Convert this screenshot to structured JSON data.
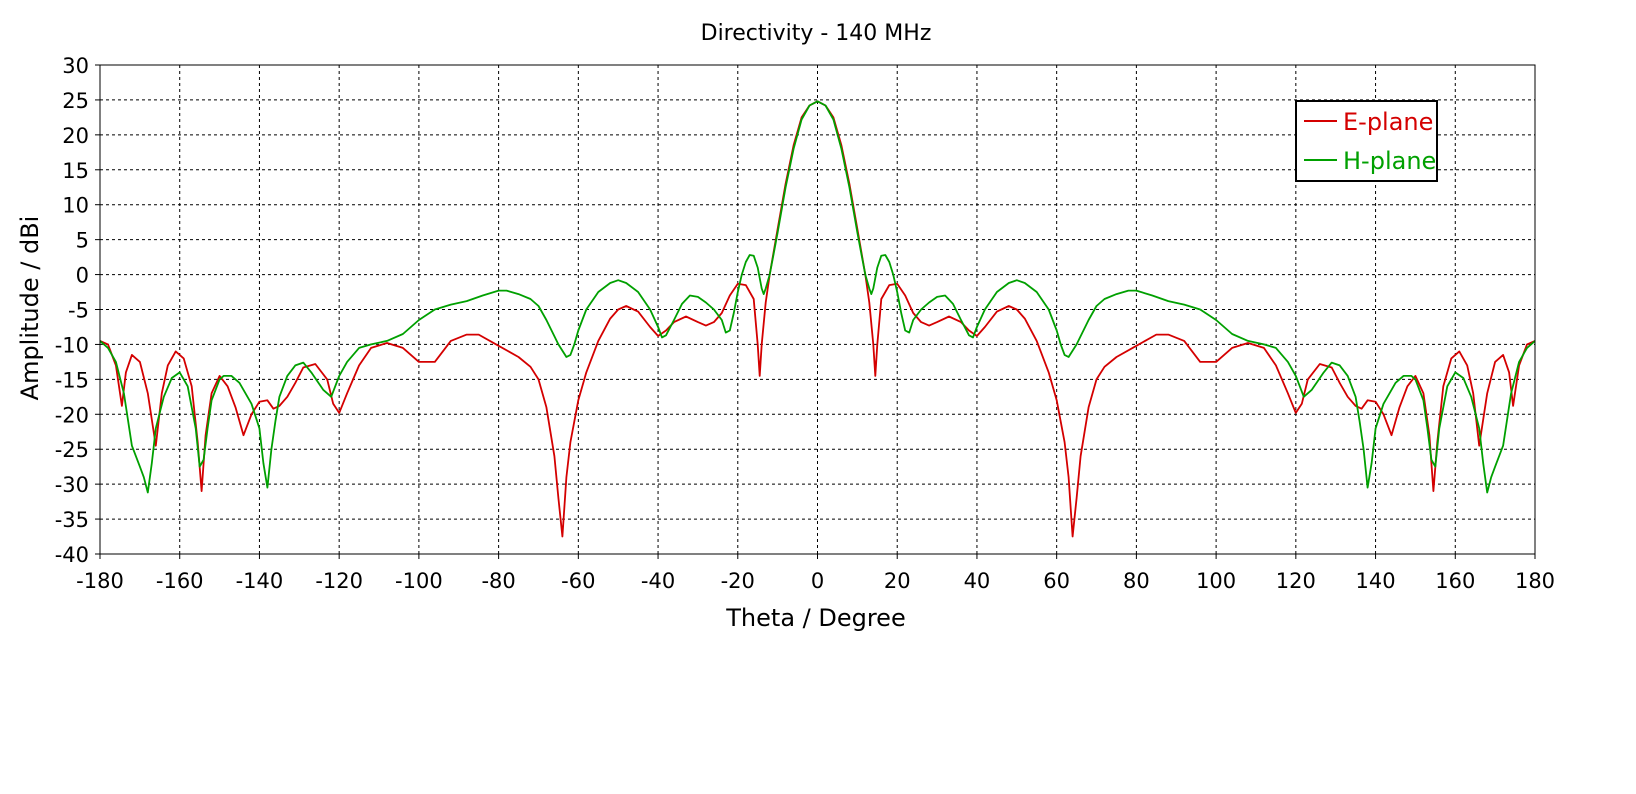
{
  "chart_data": {
    "type": "line",
    "title": "Directivity - 140 MHz",
    "xlabel": "Theta / Degree",
    "ylabel": "Amplitude / dBi",
    "xlim": [
      -180,
      180
    ],
    "ylim": [
      -40,
      30
    ],
    "xticks": [
      -180,
      -160,
      -140,
      -120,
      -100,
      -80,
      -60,
      -40,
      -20,
      0,
      20,
      40,
      60,
      80,
      100,
      120,
      140,
      160,
      180
    ],
    "yticks": [
      30,
      25,
      20,
      15,
      10,
      5,
      0,
      -5,
      -10,
      -15,
      -20,
      -25,
      -30,
      -35,
      -40
    ],
    "grid": true,
    "legend_position": "top-right",
    "series": [
      {
        "name": "E-plane",
        "color": "#d40000",
        "x": [
          0,
          2,
          4,
          6,
          8,
          10,
          12,
          13,
          14,
          14.5,
          15,
          16,
          18,
          20,
          22,
          24,
          26,
          28,
          30,
          33,
          36,
          38,
          40,
          42,
          45,
          48,
          50,
          52,
          55,
          58,
          60,
          62,
          63,
          64,
          65,
          66,
          68,
          70,
          72,
          75,
          80,
          85,
          88,
          92,
          96,
          100,
          104,
          108,
          112,
          115,
          118,
          120,
          121.5,
          123,
          126,
          129,
          131,
          133,
          135,
          136.5,
          138,
          140,
          142,
          144,
          146,
          148,
          150,
          152,
          153.5,
          154.5,
          155.5,
          157,
          159,
          161,
          163,
          164.5,
          166,
          168,
          170,
          172,
          173.5,
          174.5,
          176,
          178,
          180
        ],
        "y": [
          24.8,
          24.2,
          22.5,
          18.5,
          13,
          6.5,
          0,
          -4,
          -10,
          -14.5,
          -10,
          -3.5,
          -1.5,
          -1.3,
          -3,
          -5.5,
          -6.8,
          -7.3,
          -6.8,
          -6,
          -6.8,
          -8,
          -8.8,
          -7.5,
          -5.3,
          -4.5,
          -5,
          -6.3,
          -9.5,
          -14,
          -18,
          -24,
          -29,
          -37.5,
          -32,
          -26,
          -19,
          -15,
          -13.2,
          -11.8,
          -10.2,
          -8.6,
          -8.6,
          -9.5,
          -12.5,
          -12.5,
          -10.5,
          -9.8,
          -10.5,
          -13,
          -17,
          -19.8,
          -18.5,
          -15,
          -12.8,
          -13.3,
          -15.5,
          -17.5,
          -18.8,
          -19.2,
          -18,
          -18.2,
          -20,
          -23,
          -19,
          -16,
          -14.5,
          -17,
          -23,
          -31,
          -24,
          -16,
          -12,
          -11,
          -13,
          -17,
          -24.5,
          -17,
          -12.5,
          -11.5,
          -14,
          -18.8,
          -13,
          -10,
          -9.5
        ]
      },
      {
        "name": "H-plane",
        "color": "#00a000",
        "x": [
          0,
          2,
          4,
          6,
          8,
          10,
          11,
          12,
          13,
          13.5,
          14,
          15,
          16,
          17,
          18,
          19,
          20,
          21,
          22,
          23,
          24,
          26,
          28,
          30,
          32,
          34,
          36,
          38,
          39,
          40,
          42,
          45,
          48,
          50,
          52,
          55,
          58,
          60,
          61,
          62,
          63,
          65,
          68,
          70,
          72,
          75,
          78,
          80,
          84,
          88,
          92,
          96,
          100,
          104,
          108,
          112,
          115,
          118,
          120,
          122,
          124,
          127,
          129,
          131,
          133,
          135,
          136,
          137,
          138,
          139,
          140,
          142,
          145,
          147,
          149,
          150,
          152,
          153,
          154,
          155,
          156,
          158,
          160,
          162,
          164,
          166,
          167,
          168,
          169,
          170,
          172,
          174,
          176,
          178,
          180
        ],
        "y": [
          24.8,
          24.2,
          22.2,
          18,
          12.5,
          6,
          3,
          0,
          -2,
          -2.8,
          -2,
          1,
          2.7,
          2.8,
          1.8,
          0,
          -2.5,
          -5.5,
          -8,
          -8.3,
          -6.5,
          -5,
          -4,
          -3.2,
          -3,
          -4.2,
          -6.5,
          -8.7,
          -9,
          -7.5,
          -5,
          -2.5,
          -1.2,
          -0.8,
          -1.2,
          -2.5,
          -5,
          -8,
          -10,
          -11.5,
          -11.8,
          -10,
          -6.5,
          -4.5,
          -3.5,
          -2.8,
          -2.3,
          -2.3,
          -3,
          -3.8,
          -4.3,
          -5,
          -6.5,
          -8.5,
          -9.5,
          -10,
          -10.5,
          -12.5,
          -14.5,
          -17.5,
          -16.5,
          -14,
          -12.6,
          -13,
          -14.5,
          -17.5,
          -21,
          -25,
          -30.5,
          -27,
          -22,
          -18.5,
          -15.5,
          -14.5,
          -14.5,
          -15,
          -18,
          -22,
          -26.5,
          -27.5,
          -22,
          -16,
          -14,
          -14.8,
          -17.5,
          -22,
          -27,
          -31.2,
          -29,
          -27.5,
          -24.5,
          -17,
          -12.5,
          -10.5,
          -9.5
        ]
      }
    ]
  }
}
